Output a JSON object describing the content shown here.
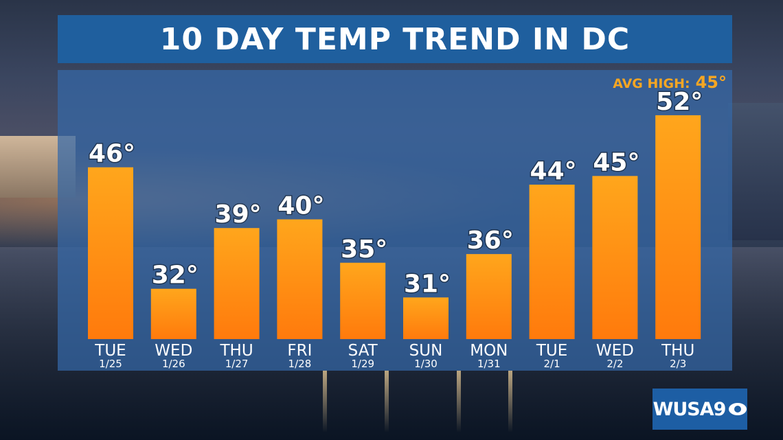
{
  "title": "10 DAY TEMP TREND IN DC",
  "avg_high": {
    "label": "AVG HIGH:",
    "value": "45°"
  },
  "logo": {
    "text": "WUSA9"
  },
  "colors": {
    "bar_top": "#ffa61c",
    "bar_bottom": "#ff7a0c",
    "banner": "#1f5f9e",
    "accent": "#f5a623"
  },
  "chart_data": {
    "type": "bar",
    "title": "10 DAY TEMP TREND IN DC",
    "xlabel": "",
    "ylabel": "",
    "grid": false,
    "categories": [
      "TUE",
      "WED",
      "THU",
      "FRI",
      "SAT",
      "SUN",
      "MON",
      "TUE",
      "WED",
      "THU"
    ],
    "dates": [
      "1/25",
      "1/26",
      "1/27",
      "1/28",
      "1/29",
      "1/30",
      "1/31",
      "2/1",
      "2/2",
      "2/3"
    ],
    "values": [
      46,
      32,
      39,
      40,
      35,
      31,
      36,
      44,
      45,
      52
    ],
    "value_labels": [
      "46°",
      "32°",
      "39°",
      "40°",
      "35°",
      "31°",
      "36°",
      "44°",
      "45°",
      "52°"
    ],
    "reference_line": {
      "label": "AVG HIGH:",
      "value": 45
    }
  }
}
